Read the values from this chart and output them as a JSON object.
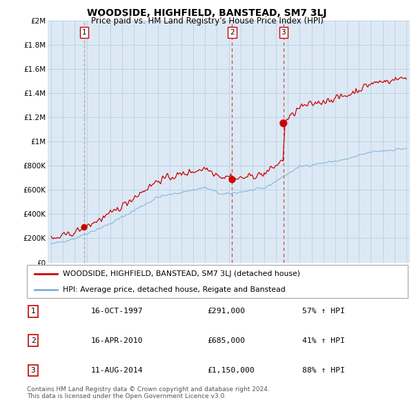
{
  "title": "WOODSIDE, HIGHFIELD, BANSTEAD, SM7 3LJ",
  "subtitle": "Price paid vs. HM Land Registry's House Price Index (HPI)",
  "legend_line1": "WOODSIDE, HIGHFIELD, BANSTEAD, SM7 3LJ (detached house)",
  "legend_line2": "HPI: Average price, detached house, Reigate and Banstead",
  "transactions": [
    {
      "num": 1,
      "date": "16-OCT-1997",
      "price": 291000,
      "year": 1997.79,
      "pct": "57%",
      "dir": "↑"
    },
    {
      "num": 2,
      "date": "16-APR-2010",
      "price": 685000,
      "year": 2010.29,
      "pct": "41%",
      "dir": "↑"
    },
    {
      "num": 3,
      "date": "11-AUG-2014",
      "price": 1150000,
      "year": 2014.62,
      "pct": "88%",
      "dir": "↑"
    }
  ],
  "table_rows": [
    {
      "num": "1",
      "date": "16-OCT-1997",
      "price": "£291,000",
      "change": "57% ↑ HPI"
    },
    {
      "num": "2",
      "date": "16-APR-2010",
      "price": "£685,000",
      "change": "41% ↑ HPI"
    },
    {
      "num": "3",
      "date": "11-AUG-2014",
      "price": "£1,150,000",
      "change": "88% ↑ HPI"
    }
  ],
  "footer1": "Contains HM Land Registry data © Crown copyright and database right 2024.",
  "footer2": "This data is licensed under the Open Government Licence v3.0.",
  "red_color": "#cc0000",
  "blue_color": "#7fb0d8",
  "chart_bg": "#dce9f5",
  "fig_bg": "#ffffff",
  "grid_color": "#b8cfe0",
  "dash_color_1": "#999999",
  "dash_color_23": "#cc3333",
  "ylim": [
    0,
    2000000
  ],
  "xlim_start": 1994.7,
  "xlim_end": 2025.3
}
